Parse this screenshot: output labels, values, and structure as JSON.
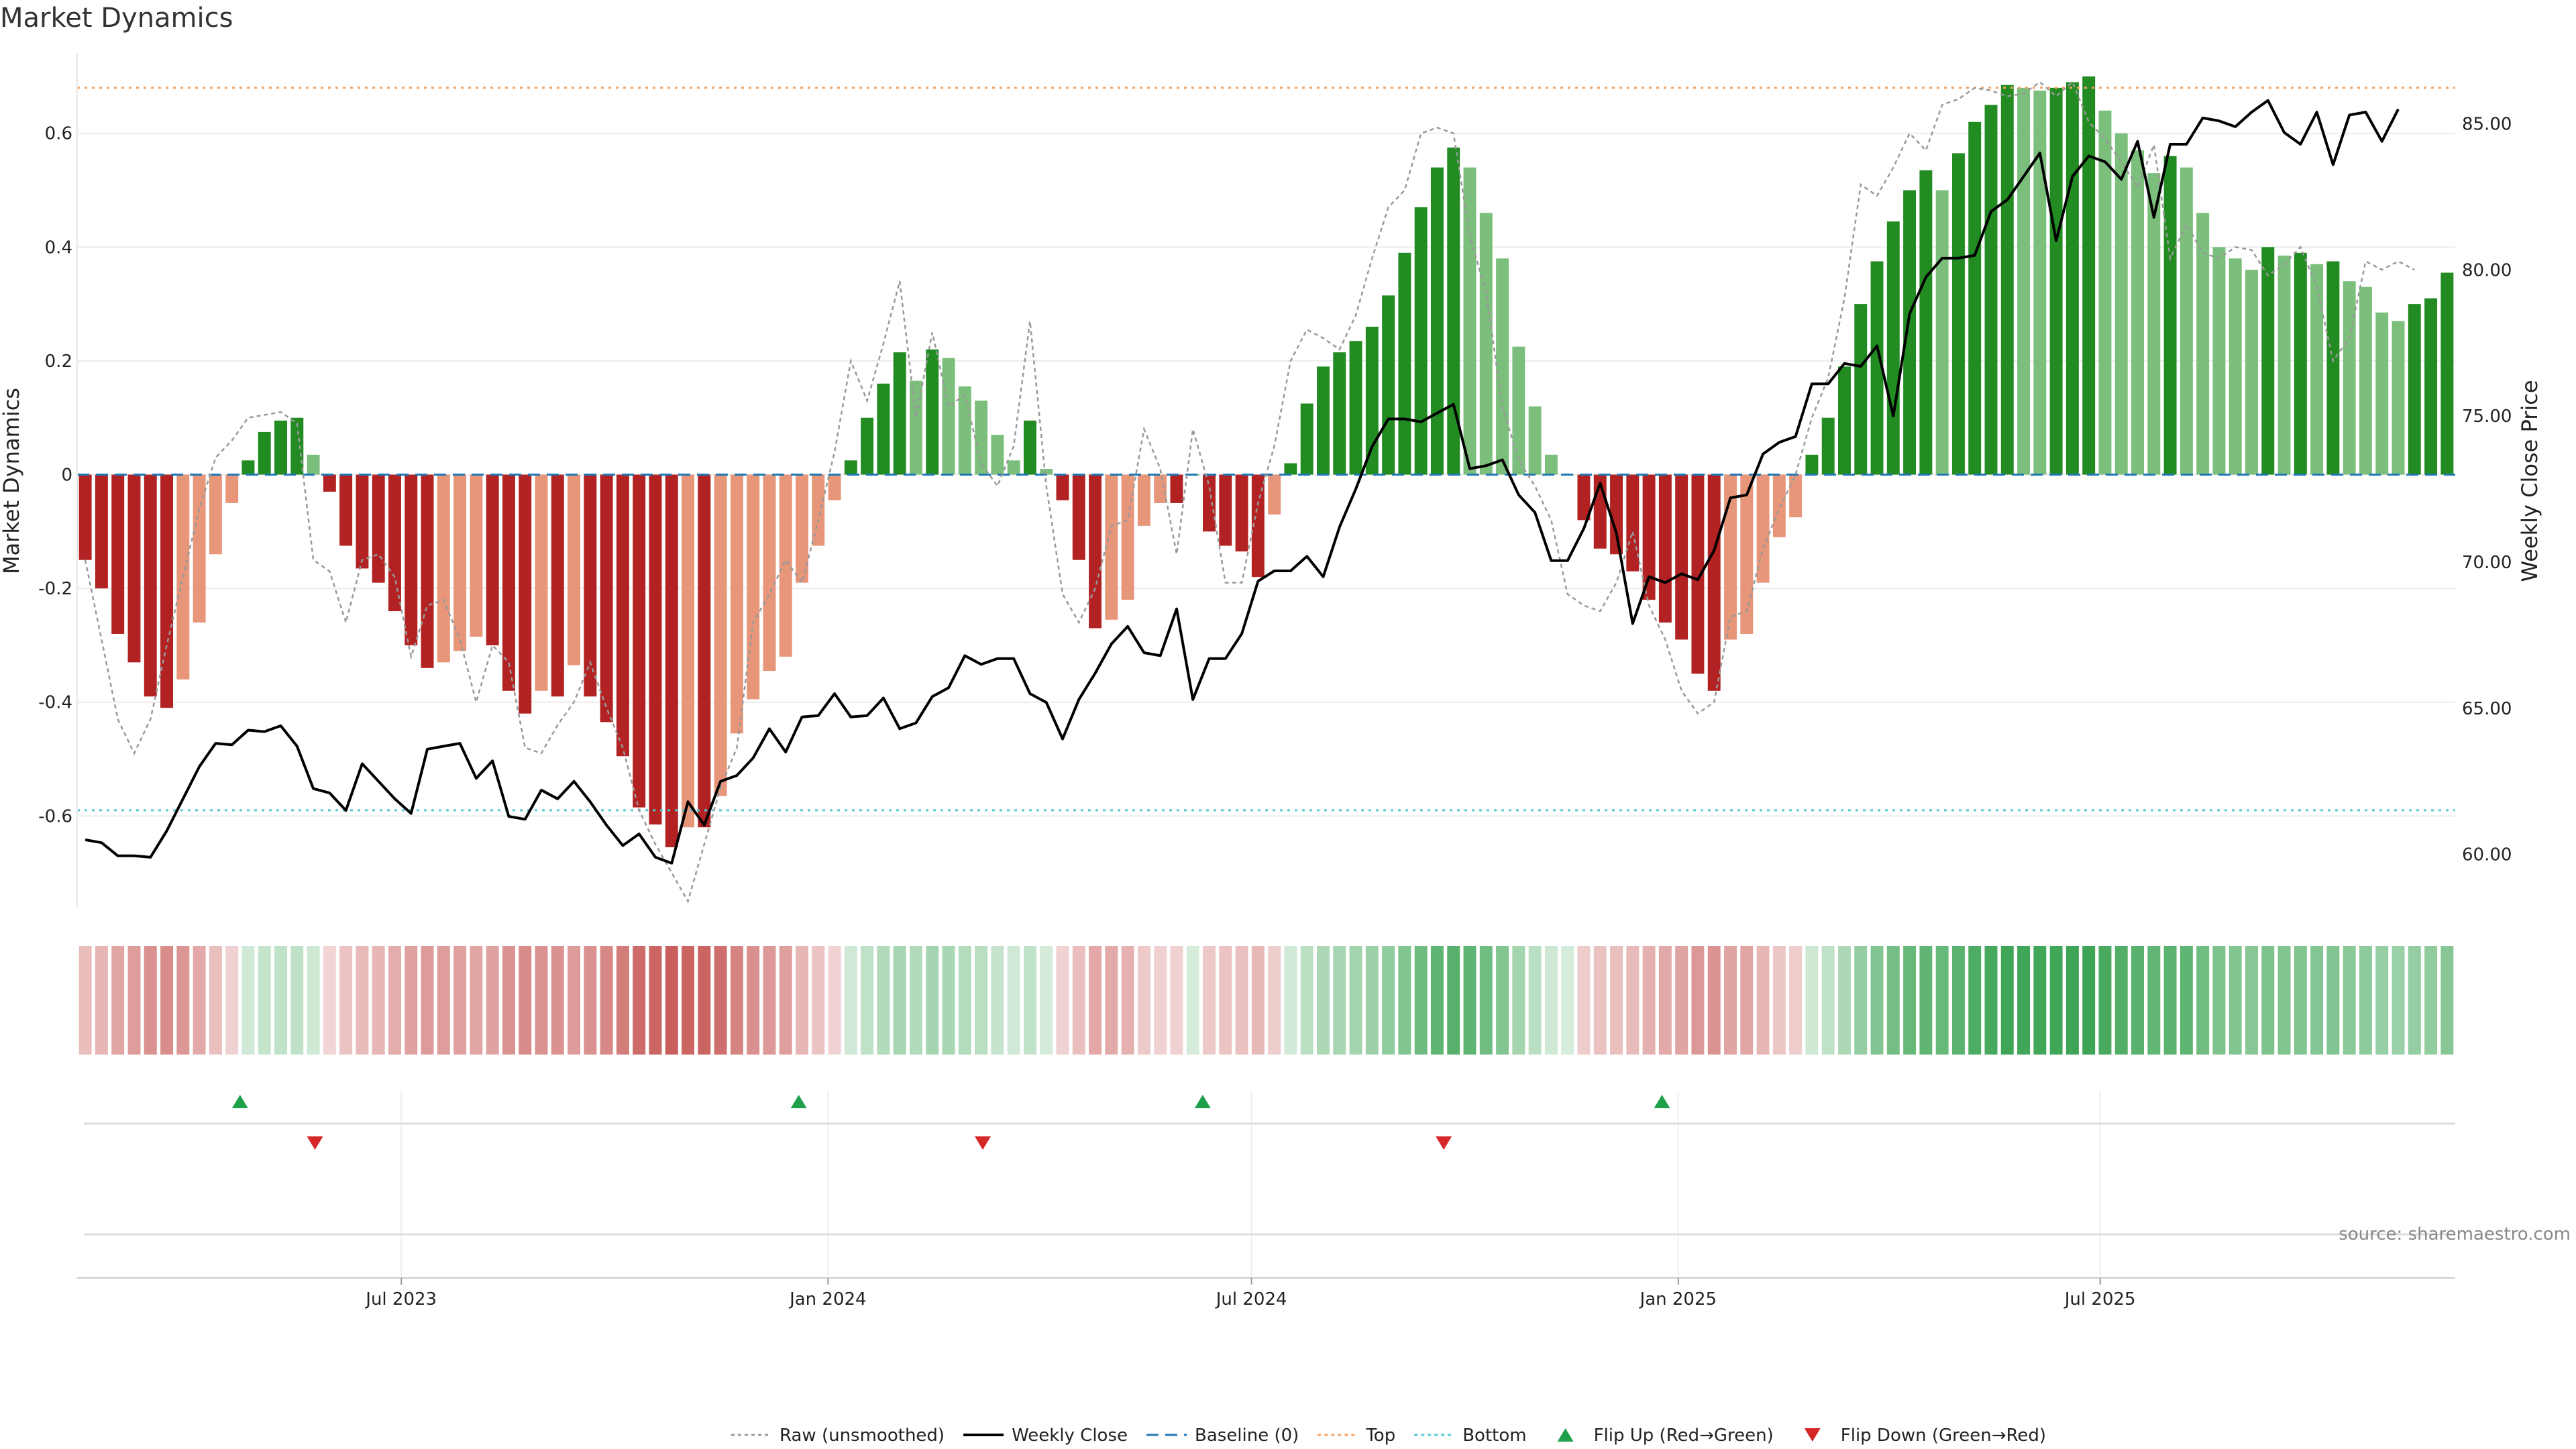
{
  "chart_data": {
    "type": "bar",
    "title": "Market Dynamics",
    "ylabel": "Market Dynamics",
    "y2label": "Weekly Close Price",
    "source": "source: sharemaestro.com",
    "ylim": [
      -0.76,
      0.74
    ],
    "y2lim": [
      58.2,
      87.4
    ],
    "yticks": [
      {
        "value": 0.6,
        "label": "0.6"
      },
      {
        "value": 0.4,
        "label": "0.4"
      },
      {
        "value": 0.2,
        "label": "0.2"
      },
      {
        "value": 0,
        "label": "0"
      },
      {
        "value": -0.2,
        "label": "-0.2"
      },
      {
        "value": -0.4,
        "label": "-0.4"
      },
      {
        "value": -0.6,
        "label": "-0.6"
      }
    ],
    "y2ticks": [
      {
        "value": 85,
        "label": "85.00"
      },
      {
        "value": 80,
        "label": "80.00"
      },
      {
        "value": 75,
        "label": "75.00"
      },
      {
        "value": 70,
        "label": "70.00"
      },
      {
        "value": 65,
        "label": "65.00"
      },
      {
        "value": 60,
        "label": "60.00"
      }
    ],
    "xticks": [
      {
        "week": 19.4,
        "label": "Jul 2023"
      },
      {
        "week": 45.6,
        "label": "Jan 2024"
      },
      {
        "week": 71.6,
        "label": "Jul 2024"
      },
      {
        "week": 97.8,
        "label": "Jan 2025"
      },
      {
        "week": 123.7,
        "label": "Jul 2025"
      }
    ],
    "top_line": 0.68,
    "bottom_line": -0.59,
    "baseline": 0,
    "values": [
      -0.15,
      -0.2,
      -0.28,
      -0.33,
      -0.39,
      -0.41,
      -0.36,
      -0.26,
      -0.14,
      -0.05,
      0.025,
      0.075,
      0.095,
      0.1,
      0.035,
      -0.03,
      -0.125,
      -0.165,
      -0.19,
      -0.24,
      -0.3,
      -0.34,
      -0.33,
      -0.31,
      -0.285,
      -0.3,
      -0.38,
      -0.42,
      -0.38,
      -0.39,
      -0.335,
      -0.39,
      -0.435,
      -0.495,
      -0.585,
      -0.615,
      -0.655,
      -0.62,
      -0.62,
      -0.565,
      -0.455,
      -0.395,
      -0.345,
      -0.32,
      -0.19,
      -0.125,
      -0.045,
      0.025,
      0.1,
      0.16,
      0.215,
      0.165,
      0.22,
      0.205,
      0.155,
      0.13,
      0.07,
      0.025,
      0.095,
      0.01,
      -0.045,
      -0.15,
      -0.27,
      -0.255,
      -0.22,
      -0.09,
      -0.05,
      -0.05,
      0.0,
      -0.1,
      -0.125,
      -0.135,
      -0.18,
      -0.07,
      0.02,
      0.125,
      0.19,
      0.215,
      0.235,
      0.26,
      0.315,
      0.39,
      0.47,
      0.54,
      0.575,
      0.54,
      0.46,
      0.38,
      0.225,
      0.12,
      0.035,
      0.0,
      -0.08,
      -0.13,
      -0.14,
      -0.17,
      -0.22,
      -0.26,
      -0.29,
      -0.35,
      -0.38,
      -0.29,
      -0.28,
      -0.19,
      -0.11,
      -0.075,
      0.035,
      0.1,
      0.19,
      0.3,
      0.375,
      0.445,
      0.5,
      0.535,
      0.5,
      0.565,
      0.62,
      0.65,
      0.685,
      0.68,
      0.675,
      0.68,
      0.69,
      0.7,
      0.64,
      0.6,
      0.57,
      0.53,
      0.56,
      0.54,
      0.46,
      0.4,
      0.38,
      0.36,
      0.4,
      0.385,
      0.39,
      0.37,
      0.375,
      0.34,
      0.33,
      0.285,
      0.27,
      0.3,
      0.31,
      0.355
    ],
    "raw": [
      -0.15,
      -0.29,
      -0.43,
      -0.49,
      -0.43,
      -0.3,
      -0.18,
      -0.06,
      0.03,
      0.06,
      0.1,
      0.105,
      0.11,
      0.09,
      -0.15,
      -0.17,
      -0.26,
      -0.15,
      -0.14,
      -0.18,
      -0.32,
      -0.23,
      -0.22,
      -0.29,
      -0.4,
      -0.3,
      -0.33,
      -0.48,
      -0.49,
      -0.44,
      -0.4,
      -0.33,
      -0.41,
      -0.48,
      -0.59,
      -0.65,
      -0.7,
      -0.75,
      -0.65,
      -0.55,
      -0.48,
      -0.26,
      -0.21,
      -0.15,
      -0.19,
      -0.08,
      0.04,
      0.2,
      0.13,
      0.23,
      0.34,
      0.1,
      0.25,
      0.12,
      0.14,
      0.02,
      -0.02,
      0.05,
      0.27,
      -0.02,
      -0.21,
      -0.26,
      -0.2,
      -0.09,
      -0.08,
      0.08,
      0.01,
      -0.14,
      0.08,
      -0.02,
      -0.19,
      -0.19,
      -0.05,
      0.05,
      0.2,
      0.255,
      0.24,
      0.22,
      0.28,
      0.38,
      0.47,
      0.5,
      0.6,
      0.61,
      0.6,
      0.42,
      0.32,
      0.12,
      0.025,
      -0.02,
      -0.08,
      -0.21,
      -0.23,
      -0.24,
      -0.19,
      -0.1,
      -0.23,
      -0.29,
      -0.38,
      -0.42,
      -0.4,
      -0.25,
      -0.24,
      -0.13,
      -0.06,
      0.0,
      0.1,
      0.17,
      0.31,
      0.51,
      0.49,
      0.54,
      0.6,
      0.57,
      0.65,
      0.66,
      0.68,
      0.675,
      0.665,
      0.67,
      0.69,
      0.665,
      0.69,
      0.62,
      0.59,
      0.55,
      0.505,
      0.58,
      0.38,
      0.44,
      0.39,
      0.38,
      0.4,
      0.395,
      0.35,
      0.37,
      0.4,
      0.33,
      0.2,
      0.24,
      0.375,
      0.36,
      0.375,
      0.36
    ],
    "weekly_close": [
      60.5,
      60.4,
      59.95,
      59.95,
      59.9,
      60.8,
      61.9,
      63.0,
      63.8,
      63.75,
      64.25,
      64.2,
      64.4,
      63.7,
      62.25,
      62.1,
      61.5,
      63.1,
      62.5,
      61.9,
      61.4,
      63.6,
      63.7,
      63.8,
      62.6,
      63.2,
      61.3,
      61.2,
      62.2,
      61.9,
      62.5,
      61.8,
      61.0,
      60.3,
      60.7,
      59.9,
      59.7,
      61.8,
      61.0,
      62.5,
      62.7,
      63.3,
      64.3,
      63.5,
      64.7,
      64.75,
      65.5,
      64.7,
      64.75,
      65.35,
      64.3,
      64.5,
      65.4,
      65.7,
      66.8,
      66.5,
      66.7,
      66.7,
      65.5,
      65.2,
      63.95,
      65.3,
      66.2,
      67.2,
      67.8,
      66.9,
      66.8,
      68.4,
      65.3,
      66.7,
      66.7,
      67.55,
      69.35,
      69.7,
      69.7,
      70.2,
      69.5,
      71.2,
      72.5,
      73.95,
      74.9,
      74.9,
      74.8,
      75.1,
      75.4,
      73.2,
      73.3,
      73.5,
      72.3,
      71.7,
      70.05,
      70.05,
      71.15,
      72.7,
      71.0,
      67.9,
      69.5,
      69.3,
      69.6,
      69.4,
      70.4,
      72.2,
      72.3,
      73.7,
      74.1,
      74.3,
      76.1,
      76.1,
      76.8,
      76.7,
      77.4,
      75.0,
      78.5,
      79.75,
      80.4,
      80.4,
      80.5,
      82.0,
      82.4,
      83.2,
      84.0,
      81.0,
      83.2,
      83.9,
      83.7,
      83.1,
      84.4,
      81.8,
      84.3,
      84.3,
      85.2,
      85.1,
      84.9,
      85.4,
      85.8,
      84.7,
      84.3,
      85.4,
      83.6,
      85.3,
      85.4,
      84.4,
      85.5
    ],
    "flip_up_weeks": [
      9.5,
      43.8,
      68.6,
      96.8
    ],
    "flip_down_weeks": [
      14.1,
      55.1,
      83.4
    ],
    "colors": {
      "strong_red": "#b22222",
      "weak_red": "#e8967a",
      "strong_green": "#228b22",
      "weak_green": "#7cbf7c",
      "raw_line": "#999999",
      "close_line": "#000000",
      "baseline": "#1f77b4",
      "top_line": "#f4a261",
      "bottom_line": "#56c8d8",
      "flip_up": "#1fa04a",
      "flip_down": "#d62728"
    },
    "legend": [
      {
        "label": "Raw (unsmoothed)",
        "symbol": "dotted-line",
        "color": "#999999"
      },
      {
        "label": "Weekly Close",
        "symbol": "solid-line",
        "color": "#000000"
      },
      {
        "label": "Baseline (0)",
        "symbol": "dashed-line",
        "color": "#1f77b4"
      },
      {
        "label": "Top",
        "symbol": "dotted-line",
        "color": "#f4a261"
      },
      {
        "label": "Bottom",
        "symbol": "dotted-line",
        "color": "#56c8d8"
      },
      {
        "label": "Flip Up (Red→Green)",
        "symbol": "triangle-up",
        "color": "#1fa04a"
      },
      {
        "label": "Flip Down (Green→Red)",
        "symbol": "triangle-down",
        "color": "#d62728"
      }
    ],
    "legend_position": "bottom-center",
    "grid": true
  }
}
